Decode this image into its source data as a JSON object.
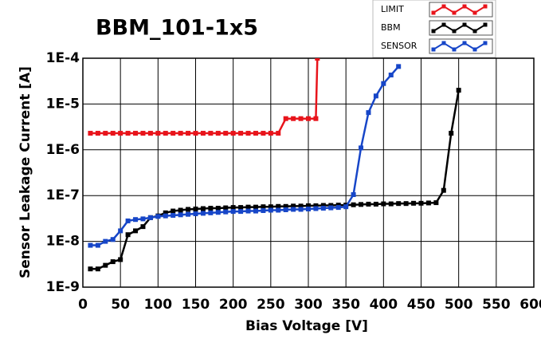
{
  "chart_data": {
    "type": "line",
    "title": "BBM_101-1x5",
    "x_label": "Bias Voltage [V]",
    "y_label": "Sensor Leakage Current [A]",
    "log_y": true,
    "grid": true,
    "legend": "top-right",
    "xlim": [
      0,
      600
    ],
    "xticks": [
      0,
      50,
      100,
      150,
      200,
      250,
      300,
      350,
      400,
      450,
      500,
      550,
      600
    ],
    "ylim": [
      1e-09,
      0.0001
    ],
    "yticks": [
      {
        "value": 1e-09,
        "label": "1E-9"
      },
      {
        "value": 1e-08,
        "label": "1E-8"
      },
      {
        "value": 1e-07,
        "label": "1E-7"
      },
      {
        "value": 1e-06,
        "label": "1E-6"
      },
      {
        "value": 1e-05,
        "label": "1E-5"
      },
      {
        "value": 0.0001,
        "label": "1E-4"
      }
    ],
    "series": [
      {
        "name": "LIMIT",
        "color": "#e8141b",
        "x": [
          10,
          20,
          30,
          40,
          50,
          60,
          70,
          80,
          90,
          100,
          110,
          120,
          130,
          140,
          150,
          160,
          170,
          180,
          190,
          200,
          210,
          220,
          230,
          240,
          250,
          260,
          270,
          280,
          290,
          300,
          310,
          312
        ],
        "values": [
          2.3e-06,
          2.3e-06,
          2.3e-06,
          2.3e-06,
          2.3e-06,
          2.3e-06,
          2.3e-06,
          2.3e-06,
          2.3e-06,
          2.3e-06,
          2.3e-06,
          2.3e-06,
          2.3e-06,
          2.3e-06,
          2.3e-06,
          2.3e-06,
          2.3e-06,
          2.3e-06,
          2.3e-06,
          2.3e-06,
          2.3e-06,
          2.3e-06,
          2.3e-06,
          2.3e-06,
          2.3e-06,
          2.3e-06,
          4.8e-06,
          4.8e-06,
          4.8e-06,
          4.8e-06,
          4.8e-06,
          0.0001
        ]
      },
      {
        "name": "BBM",
        "color": "#000000",
        "x": [
          10,
          20,
          30,
          40,
          50,
          60,
          70,
          80,
          90,
          100,
          110,
          120,
          130,
          140,
          150,
          160,
          170,
          180,
          190,
          200,
          210,
          220,
          230,
          240,
          250,
          260,
          270,
          280,
          290,
          300,
          310,
          320,
          330,
          340,
          350,
          360,
          370,
          380,
          390,
          400,
          410,
          420,
          430,
          440,
          450,
          460,
          470,
          480,
          490,
          500
        ],
        "values": [
          2.5e-09,
          2.5e-09,
          3e-09,
          3.6e-09,
          4e-09,
          1.4e-08,
          1.7e-08,
          2.1e-08,
          3.3e-08,
          3.6e-08,
          4.2e-08,
          4.6e-08,
          4.8e-08,
          5e-08,
          5.1e-08,
          5.2e-08,
          5.3e-08,
          5.3e-08,
          5.4e-08,
          5.5e-08,
          5.5e-08,
          5.6e-08,
          5.6e-08,
          5.7e-08,
          5.7e-08,
          5.8e-08,
          5.8e-08,
          5.9e-08,
          5.9e-08,
          6e-08,
          6e-08,
          6.1e-08,
          6.1e-08,
          6.2e-08,
          6.2e-08,
          6.3e-08,
          6.4e-08,
          6.5e-08,
          6.5e-08,
          6.6e-08,
          6.6e-08,
          6.7e-08,
          6.7e-08,
          6.8e-08,
          6.8e-08,
          6.9e-08,
          7e-08,
          1.3e-07,
          2.3e-06,
          2e-05
        ]
      },
      {
        "name": "SENSOR",
        "color": "#1746c8",
        "x": [
          10,
          20,
          30,
          40,
          50,
          60,
          70,
          80,
          90,
          100,
          110,
          120,
          130,
          140,
          150,
          160,
          170,
          180,
          190,
          200,
          210,
          220,
          230,
          240,
          250,
          260,
          270,
          280,
          290,
          300,
          310,
          320,
          330,
          340,
          350,
          360,
          370,
          380,
          390,
          400,
          410,
          420
        ],
        "values": [
          8.2e-09,
          8.2e-09,
          1e-08,
          1.1e-08,
          1.7e-08,
          2.8e-08,
          3e-08,
          3.1e-08,
          3.3e-08,
          3.5e-08,
          3.6e-08,
          3.7e-08,
          3.8e-08,
          3.9e-08,
          4e-08,
          4.1e-08,
          4.2e-08,
          4.3e-08,
          4.4e-08,
          4.5e-08,
          4.5e-08,
          4.6e-08,
          4.6e-08,
          4.7e-08,
          4.8e-08,
          4.8e-08,
          4.9e-08,
          5e-08,
          5e-08,
          5.1e-08,
          5.2e-08,
          5.3e-08,
          5.4e-08,
          5.5e-08,
          5.7e-08,
          1.05e-07,
          1.1e-06,
          6.5e-06,
          1.5e-05,
          2.8e-05,
          4.3e-05,
          6.6e-05
        ]
      }
    ]
  }
}
